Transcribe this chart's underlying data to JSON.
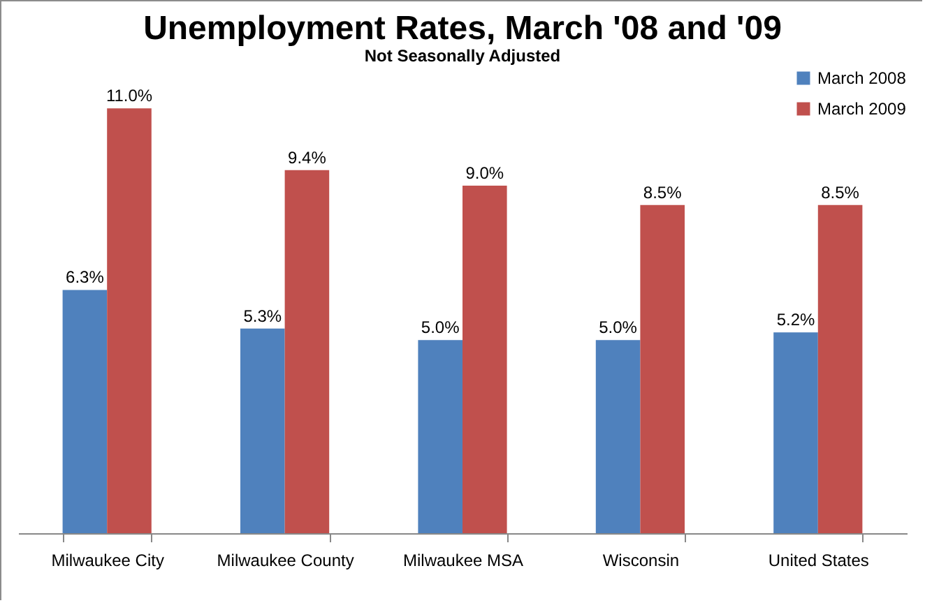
{
  "chart_data": {
    "type": "bar",
    "title": "Unemployment Rates, March '08 and '09",
    "subtitle": "Not Seasonally Adjusted",
    "categories": [
      "Milwaukee City",
      "Milwaukee County",
      "Milwaukee MSA",
      "Wisconsin",
      "United States"
    ],
    "series": [
      {
        "name": "March 2008",
        "color": "#4f81bd",
        "values": [
          6.3,
          5.3,
          5.0,
          5.0,
          5.2
        ],
        "value_labels": [
          "6.3%",
          "5.3%",
          "5.0%",
          "5.0%",
          "5.2%"
        ]
      },
      {
        "name": "March 2009",
        "color": "#c0504d",
        "values": [
          11.0,
          9.4,
          9.0,
          8.5,
          8.5
        ],
        "value_labels": [
          "11.0%",
          "9.4%",
          "9.0%",
          "8.5%",
          "8.5%"
        ]
      }
    ],
    "ylim": [
      0,
      12
    ],
    "tick_labels": "x",
    "grid": false,
    "legend": "top right"
  }
}
